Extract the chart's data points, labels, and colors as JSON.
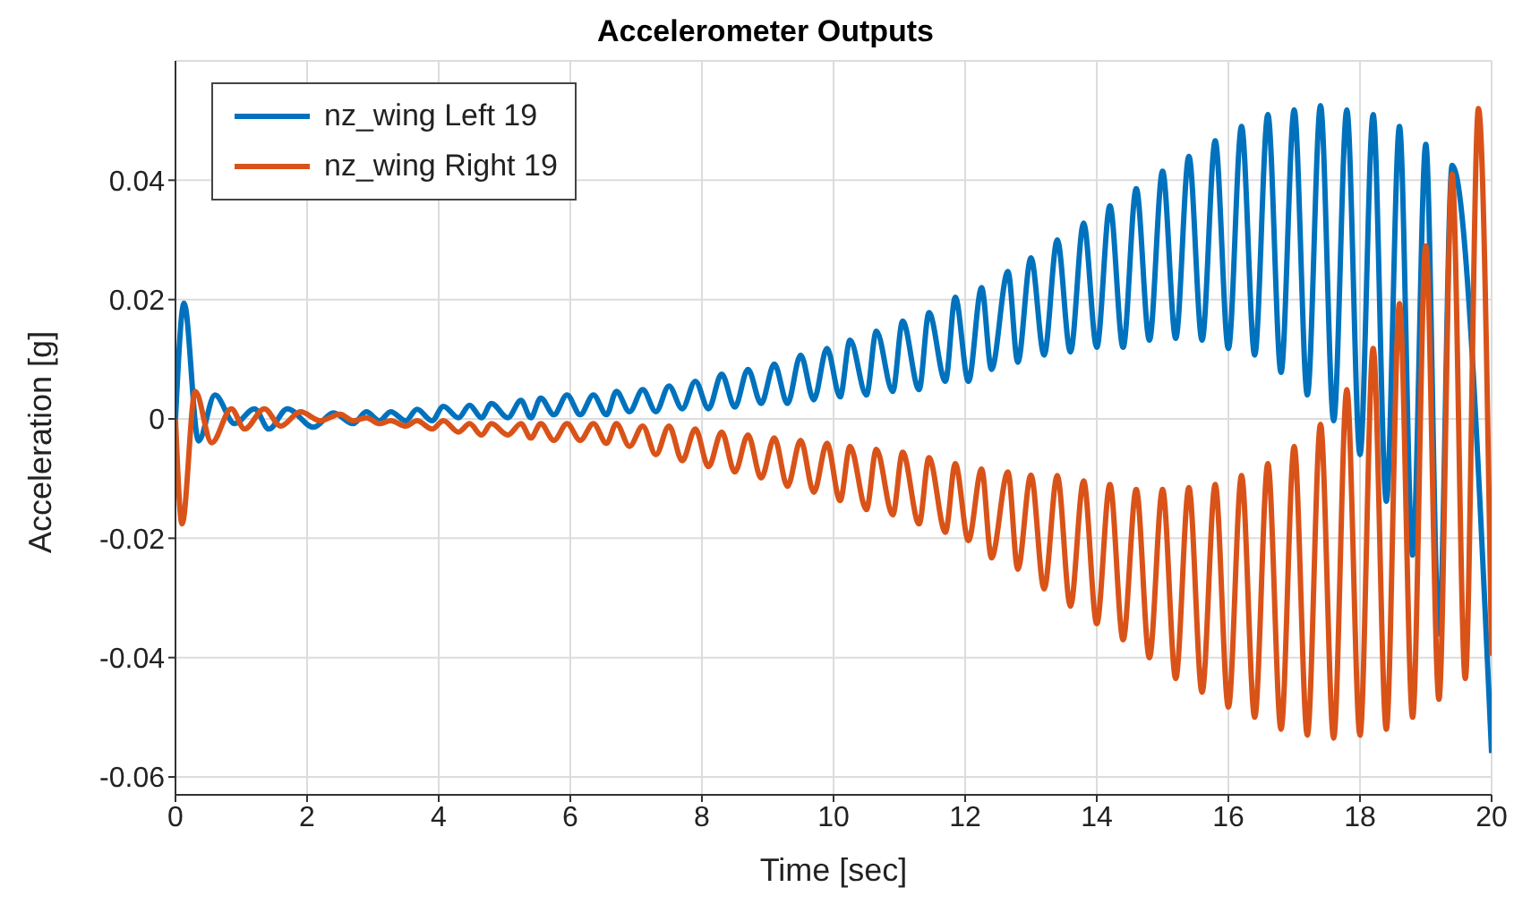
{
  "chart_data": {
    "type": "line",
    "title": "Accelerometer Outputs",
    "xlabel": "Time [sec]",
    "ylabel": "Acceleration [g]",
    "xlim": [
      0,
      20
    ],
    "xticks": [
      0,
      2,
      4,
      6,
      8,
      10,
      12,
      14,
      16,
      18,
      20
    ],
    "ylim": [
      -0.063,
      0.06
    ],
    "yticks": [
      -0.06,
      -0.04,
      -0.02,
      0,
      0.02,
      0.04
    ],
    "grid": true,
    "legend": "top left",
    "series": [
      {
        "name": "nz_wing Left 19",
        "color": "#0072bd",
        "x": [
          0,
          0.13,
          0.35,
          0.6,
          0.9,
          1.2,
          1.42,
          1.7,
          2.1,
          2.4,
          2.7,
          2.9,
          3.1,
          3.27,
          3.5,
          3.67,
          3.9,
          4.07,
          4.3,
          4.47,
          4.65,
          4.8,
          5.05,
          5.25,
          5.4,
          5.55,
          5.75,
          5.95,
          6.15,
          6.35,
          6.55,
          6.7,
          6.9,
          7.1,
          7.3,
          7.5,
          7.7,
          7.9,
          8.1,
          8.3,
          8.5,
          8.7,
          8.9,
          9.1,
          9.3,
          9.5,
          9.7,
          9.9,
          10.1,
          10.25,
          10.5,
          10.65,
          10.9,
          11.05,
          11.3,
          11.45,
          11.7,
          11.85,
          12.05,
          12.25,
          12.4,
          12.65,
          12.8,
          13.0,
          13.2,
          13.4,
          13.6,
          13.8,
          14.0,
          14.2,
          14.4,
          14.6,
          14.8,
          15.0,
          15.2,
          15.4,
          15.6,
          15.8,
          16.0,
          16.2,
          16.4,
          16.6,
          16.8,
          17.0,
          17.2,
          17.4,
          17.6,
          17.8,
          18.0,
          18.2,
          18.4,
          18.6,
          18.8,
          19.0,
          19.2,
          19.4,
          20
        ],
        "values": [
          0,
          0.0194,
          -0.0037,
          0.004,
          -0.0008,
          0.0017,
          -0.0017,
          0.0017,
          -0.0014,
          0.001,
          -0.0008,
          0.0012,
          -0.0003,
          0.0012,
          -0.0003,
          0.0016,
          -0.0003,
          0.0021,
          0.0002,
          0.0023,
          0.0002,
          0.0026,
          0.0002,
          0.0031,
          0.0002,
          0.0035,
          0.0007,
          0.004,
          0.0007,
          0.004,
          0.0007,
          0.0046,
          0.0012,
          0.0049,
          0.0012,
          0.0055,
          0.0017,
          0.0063,
          0.0017,
          0.0075,
          0.002,
          0.0083,
          0.0026,
          0.0092,
          0.0026,
          0.0107,
          0.0032,
          0.0118,
          0.0037,
          0.0132,
          0.004,
          0.0147,
          0.0046,
          0.0164,
          0.0049,
          0.0178,
          0.0063,
          0.0204,
          0.0063,
          0.022,
          0.0083,
          0.0247,
          0.0095,
          0.027,
          0.0107,
          0.03,
          0.0112,
          0.0328,
          0.012,
          0.0357,
          0.012,
          0.0386,
          0.0132,
          0.0415,
          0.0135,
          0.044,
          0.0132,
          0.0466,
          0.0118,
          0.049,
          0.0107,
          0.051,
          0.0078,
          0.0518,
          0.004,
          0.0525,
          -0.0003,
          0.0518,
          -0.006,
          0.051,
          -0.0138,
          0.049,
          -0.0228,
          0.046,
          -0.036,
          0.0425,
          -0.056
        ]
      },
      {
        "name": "nz_wing Right 19",
        "color": "#d95319",
        "x": [
          0,
          0.1,
          0.3,
          0.55,
          0.85,
          1.05,
          1.35,
          1.6,
          1.9,
          2.2,
          2.5,
          2.7,
          2.9,
          3.1,
          3.27,
          3.5,
          3.67,
          3.9,
          4.07,
          4.3,
          4.47,
          4.65,
          4.8,
          5.05,
          5.25,
          5.4,
          5.55,
          5.75,
          5.95,
          6.15,
          6.35,
          6.55,
          6.7,
          6.9,
          7.1,
          7.3,
          7.5,
          7.7,
          7.9,
          8.1,
          8.3,
          8.5,
          8.7,
          8.9,
          9.1,
          9.3,
          9.5,
          9.7,
          9.9,
          10.1,
          10.25,
          10.5,
          10.65,
          10.9,
          11.05,
          11.3,
          11.45,
          11.7,
          11.85,
          12.05,
          12.25,
          12.4,
          12.65,
          12.8,
          13.0,
          13.2,
          13.4,
          13.6,
          13.8,
          14.0,
          14.2,
          14.4,
          14.6,
          14.8,
          15.0,
          15.2,
          15.4,
          15.6,
          15.8,
          16.0,
          16.2,
          16.4,
          16.6,
          16.8,
          17.0,
          17.2,
          17.4,
          17.6,
          17.8,
          18.0,
          18.2,
          18.4,
          18.6,
          18.8,
          19.0,
          19.2,
          19.4,
          19.6,
          19.8,
          20
        ],
        "values": [
          0,
          -0.0176,
          0.0046,
          -0.004,
          0.0017,
          -0.0017,
          0.0017,
          -0.0012,
          0.0012,
          -0.0003,
          0.0008,
          -0.0003,
          0.0002,
          -0.0008,
          -0.0003,
          -0.0012,
          -0.0003,
          -0.0017,
          -0.0003,
          -0.0022,
          -0.0008,
          -0.0027,
          -0.0008,
          -0.0027,
          -0.0008,
          -0.0032,
          -0.0008,
          -0.0036,
          -0.0008,
          -0.0036,
          -0.0008,
          -0.0041,
          -0.0008,
          -0.0046,
          -0.0012,
          -0.006,
          -0.0012,
          -0.007,
          -0.0017,
          -0.008,
          -0.0022,
          -0.0089,
          -0.0027,
          -0.0099,
          -0.0032,
          -0.0113,
          -0.0036,
          -0.0123,
          -0.0041,
          -0.0137,
          -0.0046,
          -0.0152,
          -0.0051,
          -0.0161,
          -0.0056,
          -0.0176,
          -0.0065,
          -0.019,
          -0.0075,
          -0.0204,
          -0.0084,
          -0.0233,
          -0.0089,
          -0.0252,
          -0.0094,
          -0.0285,
          -0.0095,
          -0.0314,
          -0.0104,
          -0.0343,
          -0.011,
          -0.037,
          -0.0118,
          -0.04,
          -0.0118,
          -0.0435,
          -0.0115,
          -0.0458,
          -0.011,
          -0.0483,
          -0.0095,
          -0.05,
          -0.0075,
          -0.052,
          -0.0046,
          -0.053,
          -0.0009,
          -0.0535,
          0.0049,
          -0.053,
          0.0118,
          -0.052,
          0.0193,
          -0.05,
          0.029,
          -0.047,
          0.041,
          -0.0435,
          0.052,
          -0.0397
        ]
      }
    ]
  }
}
